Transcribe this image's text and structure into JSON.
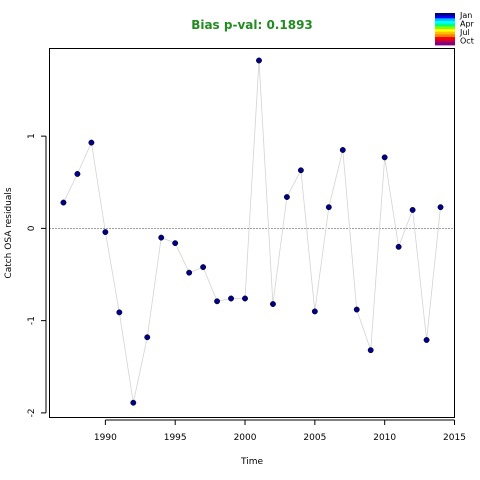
{
  "chart_data": {
    "type": "scatter",
    "title": "Bias p-val: 0.1893",
    "title_color": "#228b22",
    "xlabel": "Time",
    "ylabel": "Catch OSA residuals",
    "xlim": [
      1986,
      2015
    ],
    "ylim": [
      -2.05,
      1.95
    ],
    "x_ticks": [
      1990,
      1995,
      2000,
      2005,
      2010,
      2015
    ],
    "y_ticks": [
      -2,
      -1,
      0,
      1
    ],
    "reference_line": 0,
    "grid": false,
    "line_color": "#d3d3d3",
    "point_color": "#00008b",
    "legend": {
      "position": "top-right",
      "labels": [
        "Jan",
        "Apr",
        "Jul",
        "Oct"
      ],
      "colors": [
        "#000080",
        "#0000ff",
        "#00bfff",
        "#00ffff",
        "#00ff80",
        "#80ff00",
        "#ffff00",
        "#ffbf00",
        "#ff8000",
        "#ff0000",
        "#c00040",
        "#800080"
      ]
    },
    "x": [
      1987,
      1988,
      1989,
      1990,
      1991,
      1992,
      1993,
      1994,
      1995,
      1996,
      1997,
      1998,
      1999,
      2000,
      2001,
      2002,
      2003,
      2004,
      2005,
      2006,
      2007,
      2008,
      2009,
      2010,
      2011,
      2012,
      2013,
      2014
    ],
    "y": [
      0.28,
      0.59,
      0.93,
      -0.04,
      -0.91,
      -1.89,
      -1.18,
      -0.1,
      -0.16,
      -0.48,
      -0.42,
      -0.79,
      -0.76,
      -0.76,
      1.82,
      -0.82,
      0.34,
      0.63,
      -0.9,
      0.23,
      0.85,
      -0.88,
      -1.32,
      0.77,
      -0.2,
      0.2,
      -1.21,
      0.23
    ]
  }
}
